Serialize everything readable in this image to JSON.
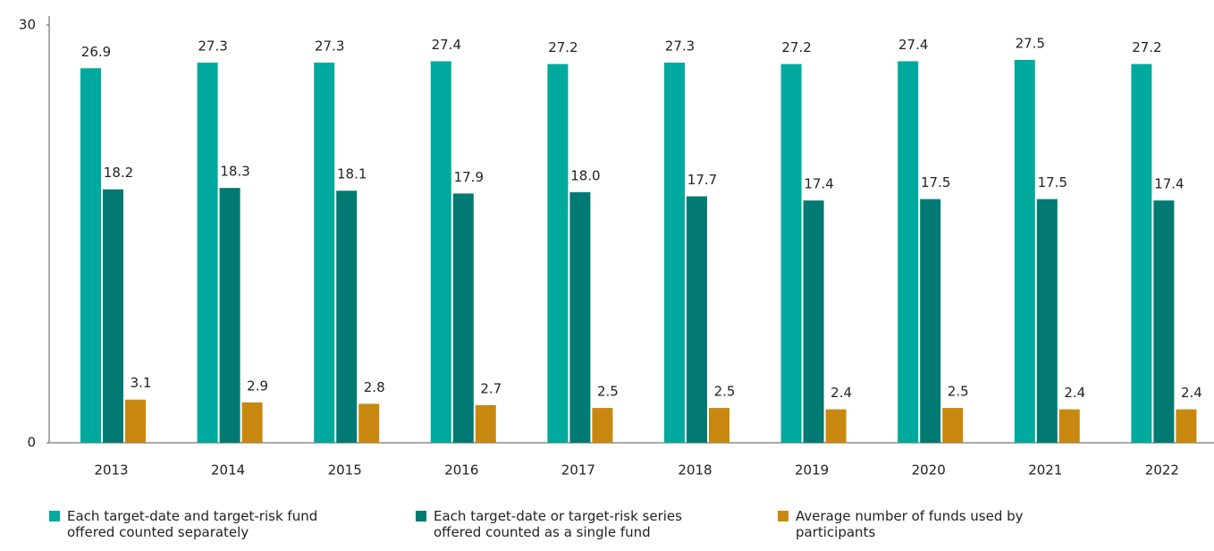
{
  "chart_data": {
    "type": "bar",
    "categories": [
      "2013",
      "2014",
      "2015",
      "2016",
      "2017",
      "2018",
      "2019",
      "2020",
      "2021",
      "2022"
    ],
    "series": [
      {
        "name": "Each target-date and target-risk fund offered counted separately",
        "color": "#00a99d",
        "values": [
          26.9,
          27.3,
          27.3,
          27.4,
          27.2,
          27.3,
          27.2,
          27.4,
          27.5,
          27.2
        ],
        "value_labels": [
          "26.9",
          "27.3",
          "27.3",
          "27.4",
          "27.2",
          "27.3",
          "27.2",
          "27.4",
          "27.5",
          "27.2"
        ]
      },
      {
        "name": "Each target-date or target-risk series offered counted as a single fund",
        "color": "#007a72",
        "values": [
          18.2,
          18.3,
          18.1,
          17.9,
          18.0,
          17.7,
          17.4,
          17.5,
          17.5,
          17.4
        ],
        "value_labels": [
          "18.2",
          "18.3",
          "18.1",
          "17.9",
          "18.0",
          "17.7",
          "17.4",
          "17.5",
          "17.5",
          "17.4"
        ]
      },
      {
        "name": "Average number of funds used by participants",
        "color": "#c8880f",
        "values": [
          3.1,
          2.9,
          2.8,
          2.7,
          2.5,
          2.5,
          2.4,
          2.5,
          2.4,
          2.4
        ],
        "value_labels": [
          "3.1",
          "2.9",
          "2.8",
          "2.7",
          "2.5",
          "2.5",
          "2.4",
          "2.5",
          "2.4",
          "2.4"
        ]
      }
    ],
    "ylim": [
      0,
      30
    ],
    "yticks": [
      0,
      30
    ],
    "grid": false
  }
}
